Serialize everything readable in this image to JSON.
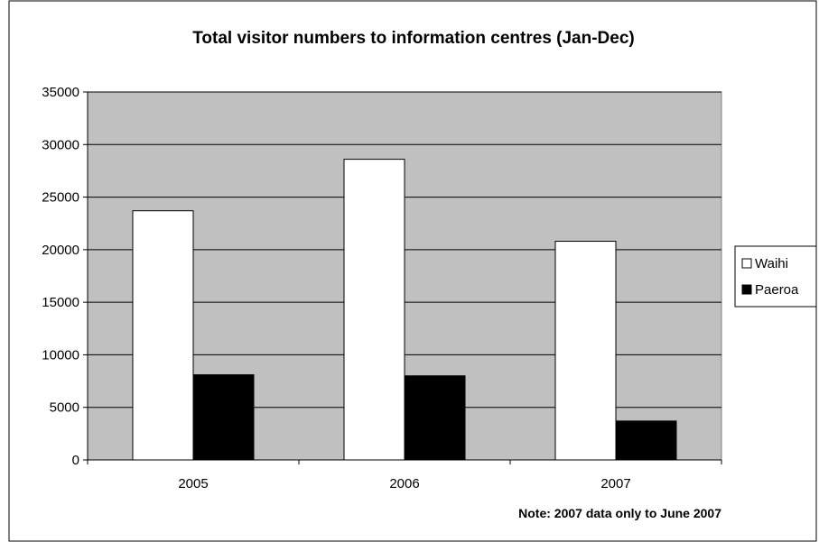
{
  "chart_data": {
    "type": "bar",
    "title": "Total visitor numbers to information centres (Jan-Dec)",
    "categories": [
      "2005",
      "2006",
      "2007"
    ],
    "series": [
      {
        "name": "Waihi",
        "values": [
          23700,
          28600,
          20800
        ],
        "color": "#ffffff"
      },
      {
        "name": "Paeroa",
        "values": [
          8100,
          8000,
          3700
        ],
        "color": "#000000"
      }
    ],
    "ylim": [
      0,
      35000
    ],
    "yticks": [
      "0",
      "5000",
      "10000",
      "15000",
      "20000",
      "25000",
      "30000",
      "35000"
    ],
    "grid": true,
    "plot_background": "#c0c0c0",
    "legend_position": "right",
    "note": "Note: 2007 data only to June 2007"
  }
}
